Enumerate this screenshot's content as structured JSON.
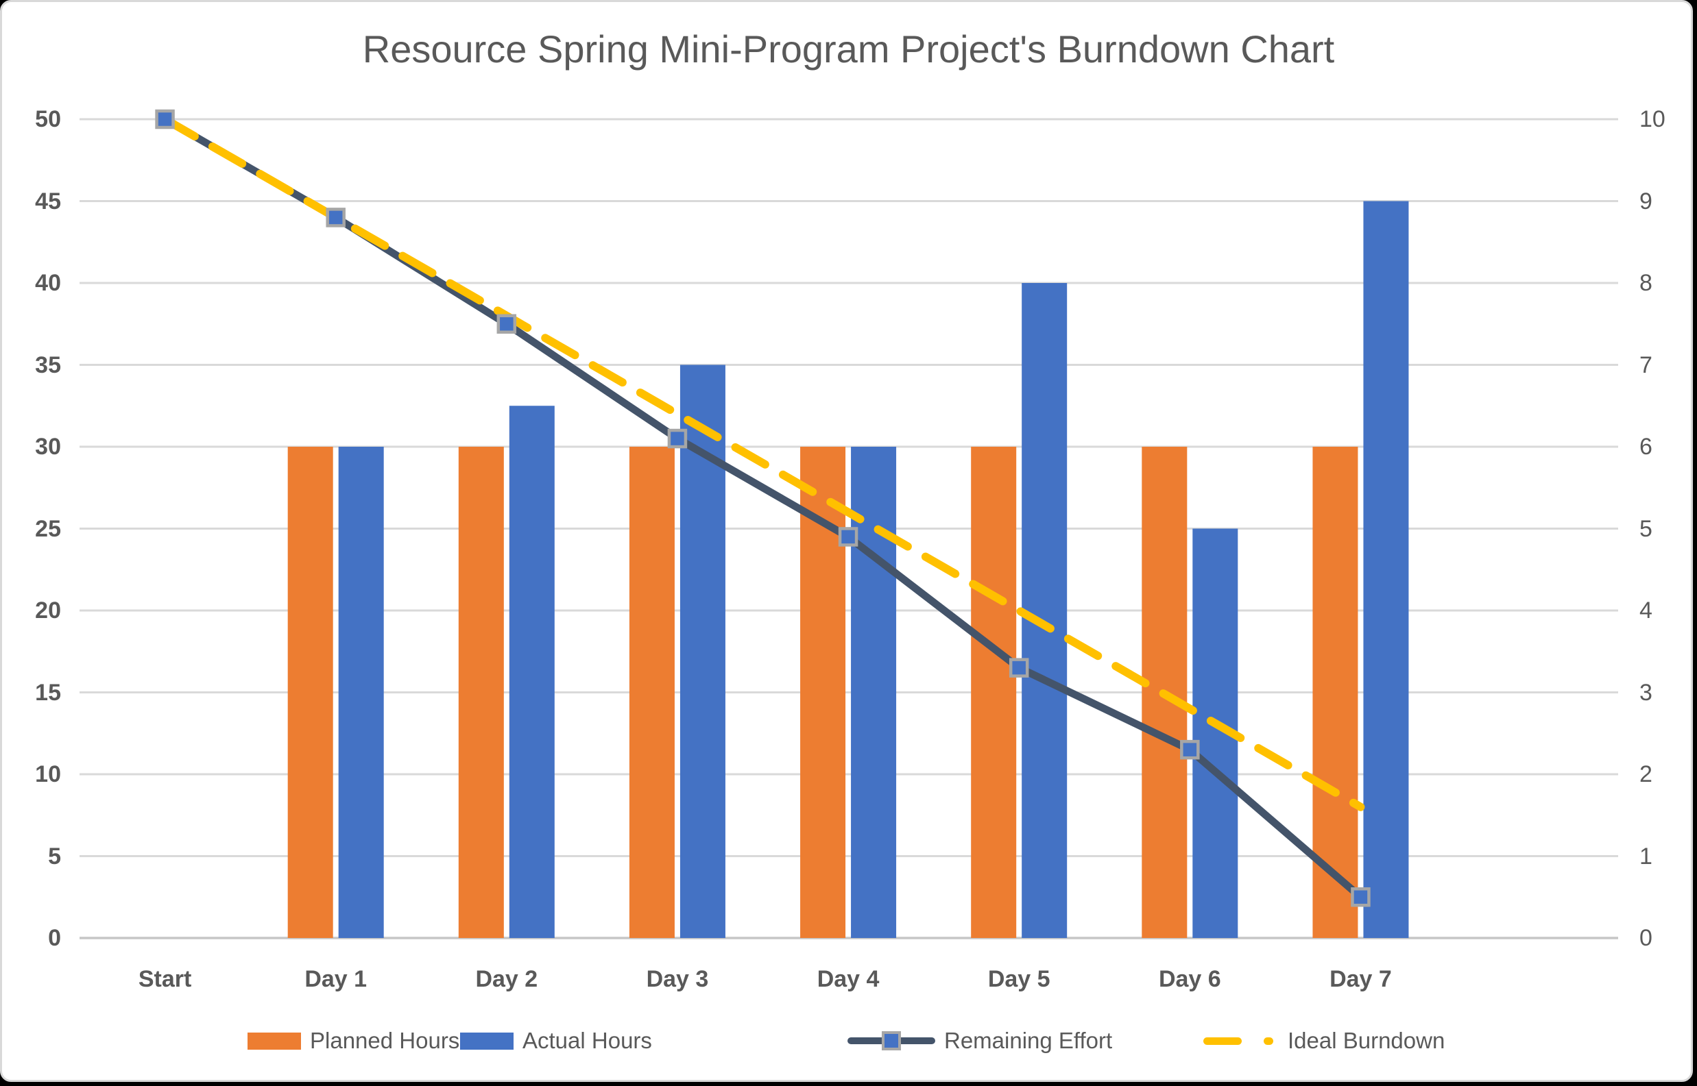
{
  "title": "Resource Spring Mini-Program Project's Burndown Chart",
  "colors": {
    "background": "#000000",
    "chart_background": "#ffffff",
    "frame_border": "#d9d9d9",
    "gridline": "#d9d9d9",
    "baseline": "#c6c6c6",
    "text": "#595959",
    "planned_bar": "#ed7d31",
    "actual_bar": "#4472c4",
    "remaining_line": "#44546a",
    "ideal_line": "#ffc000",
    "marker_fill": "#4472c4",
    "marker_border": "#a6a6a6"
  },
  "chart_data": {
    "type": "combo-bar-line",
    "title": "Resource Spring Mini-Program Project's Burndown Chart",
    "categories": [
      "Start",
      "Day 1",
      "Day 2",
      "Day 3",
      "Day 4",
      "Day 5",
      "Day 6",
      "Day 7"
    ],
    "series": [
      {
        "name": "Planned Hours",
        "type": "bar",
        "color": "#ed7d31",
        "axis": "left",
        "values": [
          null,
          30,
          30,
          30,
          30,
          30,
          30,
          30
        ]
      },
      {
        "name": "Actual Hours",
        "type": "bar",
        "color": "#4472c4",
        "axis": "left",
        "values": [
          null,
          30,
          32.5,
          35,
          30,
          40,
          25,
          45
        ]
      },
      {
        "name": "Remaining Effort",
        "type": "line",
        "color": "#44546a",
        "marker": "square",
        "axis": "left",
        "values": [
          50,
          44,
          37.5,
          30.5,
          24.5,
          16.5,
          11.5,
          2.5
        ]
      },
      {
        "name": "Ideal Burndown",
        "type": "line-dashed",
        "color": "#ffc000",
        "axis": "left",
        "values": [
          50,
          44,
          38,
          32,
          26,
          20,
          14,
          8
        ]
      }
    ],
    "left_axis": {
      "min": 0,
      "max": 50,
      "step": 5,
      "ticks": [
        "0",
        "5",
        "10",
        "15",
        "20",
        "25",
        "30",
        "35",
        "40",
        "45",
        "50"
      ]
    },
    "right_axis": {
      "min": 0,
      "max": 10,
      "step": 1,
      "ticks": [
        "0",
        "1",
        "2",
        "3",
        "4",
        "5",
        "6",
        "7",
        "8",
        "9",
        "10"
      ]
    },
    "grid": true,
    "legend_position": "bottom",
    "legend": [
      {
        "label": "Planned Hours",
        "glyph": "bar-swatch"
      },
      {
        "label": "Actual Hours",
        "glyph": "bar-swatch"
      },
      {
        "label": "Remaining Effort",
        "glyph": "line-marker"
      },
      {
        "label": "Ideal Burndown",
        "glyph": "dashed-line"
      }
    ]
  }
}
